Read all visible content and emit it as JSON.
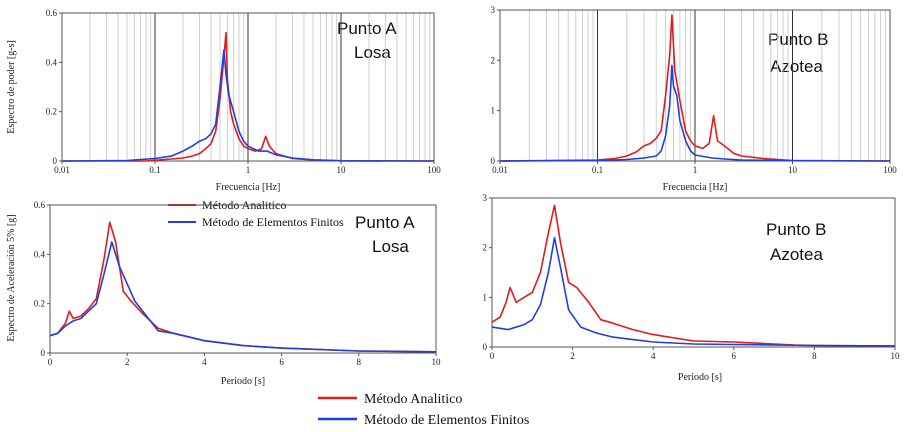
{
  "chart_data": [
    {
      "type": "line",
      "id": "p1",
      "xscale": "log",
      "xlim": [
        0.01,
        100
      ],
      "ylim": [
        0,
        0.6
      ],
      "xticks": [
        "0.01",
        "0.1",
        "1",
        "10",
        "100"
      ],
      "yticks": [
        "0",
        "0.2",
        "0.4",
        "0.6"
      ],
      "xlabel": "Frecuencia  [Hz]",
      "ylabel": "Espectro de poder [g-s]",
      "annotation": [
        "Punto A",
        "Losa"
      ],
      "grid": true,
      "series": [
        {
          "name": "Método Analitico",
          "color": "#e31a1c",
          "points": [
            [
              0.01,
              0
            ],
            [
              0.08,
              0
            ],
            [
              0.1,
              0.003
            ],
            [
              0.15,
              0.008
            ],
            [
              0.2,
              0.012
            ],
            [
              0.25,
              0.02
            ],
            [
              0.3,
              0.03
            ],
            [
              0.35,
              0.05
            ],
            [
              0.4,
              0.07
            ],
            [
              0.45,
              0.12
            ],
            [
              0.5,
              0.25
            ],
            [
              0.55,
              0.42
            ],
            [
              0.58,
              0.52
            ],
            [
              0.6,
              0.33
            ],
            [
              0.65,
              0.2
            ],
            [
              0.7,
              0.15
            ],
            [
              0.8,
              0.09
            ],
            [
              0.9,
              0.06
            ],
            [
              1.0,
              0.05
            ],
            [
              1.2,
              0.04
            ],
            [
              1.4,
              0.05
            ],
            [
              1.55,
              0.1
            ],
            [
              1.7,
              0.06
            ],
            [
              2.0,
              0.03
            ],
            [
              3.0,
              0.01
            ],
            [
              5.0,
              0.004
            ],
            [
              10,
              0.001
            ],
            [
              100,
              0
            ]
          ]
        },
        {
          "name": "Método de Elementos Finitos",
          "color": "#1f3fe0",
          "points": [
            [
              0.01,
              0
            ],
            [
              0.05,
              0.002
            ],
            [
              0.1,
              0.01
            ],
            [
              0.15,
              0.02
            ],
            [
              0.2,
              0.04
            ],
            [
              0.25,
              0.06
            ],
            [
              0.3,
              0.08
            ],
            [
              0.35,
              0.09
            ],
            [
              0.4,
              0.11
            ],
            [
              0.45,
              0.15
            ],
            [
              0.5,
              0.3
            ],
            [
              0.55,
              0.45
            ],
            [
              0.58,
              0.35
            ],
            [
              0.62,
              0.27
            ],
            [
              0.7,
              0.2
            ],
            [
              0.8,
              0.12
            ],
            [
              0.9,
              0.08
            ],
            [
              1.0,
              0.06
            ],
            [
              1.3,
              0.04
            ],
            [
              1.6,
              0.04
            ],
            [
              2.0,
              0.025
            ],
            [
              3.0,
              0.012
            ],
            [
              5.0,
              0.005
            ],
            [
              10,
              0.001
            ],
            [
              100,
              0
            ]
          ]
        }
      ]
    },
    {
      "type": "line",
      "id": "p2",
      "xscale": "log",
      "xlim": [
        0.01,
        100
      ],
      "ylim": [
        0,
        3
      ],
      "xticks": [
        "0.01",
        "0.1",
        "1",
        "10",
        "100"
      ],
      "yticks": [
        "0",
        "1",
        "2",
        "3"
      ],
      "xlabel": "Frecuencia  [Hz]",
      "ylabel": "",
      "annotation": [
        "Punto B",
        "Azotea"
      ],
      "grid": true,
      "series": [
        {
          "name": "Método Analitico",
          "color": "#e31a1c",
          "points": [
            [
              0.01,
              0
            ],
            [
              0.1,
              0.02
            ],
            [
              0.15,
              0.05
            ],
            [
              0.2,
              0.1
            ],
            [
              0.25,
              0.18
            ],
            [
              0.3,
              0.3
            ],
            [
              0.35,
              0.35
            ],
            [
              0.4,
              0.45
            ],
            [
              0.45,
              0.6
            ],
            [
              0.5,
              1.3
            ],
            [
              0.55,
              2.1
            ],
            [
              0.58,
              2.9
            ],
            [
              0.62,
              1.8
            ],
            [
              0.7,
              1.2
            ],
            [
              0.8,
              0.6
            ],
            [
              0.9,
              0.4
            ],
            [
              1.0,
              0.3
            ],
            [
              1.2,
              0.25
            ],
            [
              1.4,
              0.35
            ],
            [
              1.55,
              0.9
            ],
            [
              1.7,
              0.4
            ],
            [
              2.0,
              0.3
            ],
            [
              2.5,
              0.15
            ],
            [
              3.0,
              0.1
            ],
            [
              5.0,
              0.05
            ],
            [
              10,
              0.01
            ],
            [
              100,
              0
            ]
          ]
        },
        {
          "name": "Método de Elementos Finitos",
          "color": "#1f3fe0",
          "points": [
            [
              0.01,
              0
            ],
            [
              0.1,
              0.01
            ],
            [
              0.2,
              0.03
            ],
            [
              0.3,
              0.06
            ],
            [
              0.4,
              0.1
            ],
            [
              0.45,
              0.2
            ],
            [
              0.5,
              0.5
            ],
            [
              0.55,
              1.1
            ],
            [
              0.58,
              1.9
            ],
            [
              0.6,
              1.5
            ],
            [
              0.65,
              1.3
            ],
            [
              0.7,
              0.8
            ],
            [
              0.8,
              0.4
            ],
            [
              0.9,
              0.2
            ],
            [
              1.0,
              0.12
            ],
            [
              1.5,
              0.06
            ],
            [
              2.0,
              0.04
            ],
            [
              3.0,
              0.02
            ],
            [
              10,
              0.005
            ],
            [
              100,
              0
            ]
          ]
        }
      ]
    },
    {
      "type": "line",
      "id": "p3",
      "xscale": "linear",
      "xlim": [
        0,
        10
      ],
      "ylim": [
        0,
        0.6
      ],
      "xticks": [
        "0",
        "2",
        "4",
        "6",
        "8",
        "10"
      ],
      "yticks": [
        "0",
        "0.2",
        "0.4",
        "0.6"
      ],
      "xlabel": "Periodo  [s]",
      "ylabel": "Espectro de Aceleración 5% [g]",
      "annotation": [
        "Punto A",
        "Losa"
      ],
      "grid": false,
      "legend": [
        "Método Analitico",
        "Método de Elementos Finitos"
      ],
      "series": [
        {
          "name": "Método Analitico",
          "color": "#e31a1c",
          "points": [
            [
              0,
              0.07
            ],
            [
              0.2,
              0.08
            ],
            [
              0.4,
              0.12
            ],
            [
              0.5,
              0.17
            ],
            [
              0.6,
              0.14
            ],
            [
              0.8,
              0.15
            ],
            [
              1.0,
              0.18
            ],
            [
              1.2,
              0.22
            ],
            [
              1.4,
              0.38
            ],
            [
              1.55,
              0.53
            ],
            [
              1.7,
              0.45
            ],
            [
              1.9,
              0.25
            ],
            [
              2.1,
              0.21
            ],
            [
              2.4,
              0.16
            ],
            [
              2.8,
              0.1
            ],
            [
              3.2,
              0.08
            ],
            [
              4.0,
              0.05
            ],
            [
              5.0,
              0.03
            ],
            [
              6.0,
              0.02
            ],
            [
              8.0,
              0.008
            ],
            [
              10,
              0.005
            ]
          ]
        },
        {
          "name": "Método de Elementos Finitos",
          "color": "#1f3fe0",
          "points": [
            [
              0,
              0.07
            ],
            [
              0.2,
              0.08
            ],
            [
              0.4,
              0.11
            ],
            [
              0.6,
              0.13
            ],
            [
              0.8,
              0.14
            ],
            [
              1.0,
              0.17
            ],
            [
              1.2,
              0.2
            ],
            [
              1.4,
              0.32
            ],
            [
              1.6,
              0.45
            ],
            [
              1.8,
              0.35
            ],
            [
              2.0,
              0.28
            ],
            [
              2.2,
              0.21
            ],
            [
              2.5,
              0.15
            ],
            [
              2.8,
              0.09
            ],
            [
              3.2,
              0.08
            ],
            [
              4.0,
              0.05
            ],
            [
              5.0,
              0.03
            ],
            [
              6.0,
              0.02
            ],
            [
              8.0,
              0.008
            ],
            [
              10,
              0.005
            ]
          ]
        }
      ]
    },
    {
      "type": "line",
      "id": "p4",
      "xscale": "linear",
      "xlim": [
        0,
        10
      ],
      "ylim": [
        0,
        3
      ],
      "xticks": [
        "0",
        "2",
        "4",
        "6",
        "8",
        "10"
      ],
      "yticks": [
        "0",
        "1",
        "2",
        "3"
      ],
      "xlabel": "Periodo  [s]",
      "ylabel": "",
      "annotation": [
        "Punto B",
        "Azotea"
      ],
      "grid": false,
      "series": [
        {
          "name": "Método Analitico",
          "color": "#e31a1c",
          "points": [
            [
              0,
              0.5
            ],
            [
              0.2,
              0.6
            ],
            [
              0.35,
              0.9
            ],
            [
              0.45,
              1.2
            ],
            [
              0.6,
              0.9
            ],
            [
              0.8,
              1.0
            ],
            [
              1.0,
              1.1
            ],
            [
              1.2,
              1.5
            ],
            [
              1.4,
              2.3
            ],
            [
              1.55,
              2.85
            ],
            [
              1.7,
              2.1
            ],
            [
              1.9,
              1.3
            ],
            [
              2.1,
              1.2
            ],
            [
              2.4,
              0.9
            ],
            [
              2.7,
              0.55
            ],
            [
              3.0,
              0.48
            ],
            [
              3.5,
              0.35
            ],
            [
              4.0,
              0.25
            ],
            [
              5.0,
              0.12
            ],
            [
              6.0,
              0.1
            ],
            [
              7.5,
              0.04
            ],
            [
              8,
              0.03
            ],
            [
              10,
              0.02
            ]
          ]
        },
        {
          "name": "Método de Elementos Finitos",
          "color": "#1f3fe0",
          "points": [
            [
              0,
              0.4
            ],
            [
              0.4,
              0.35
            ],
            [
              0.8,
              0.45
            ],
            [
              1.0,
              0.55
            ],
            [
              1.2,
              0.85
            ],
            [
              1.4,
              1.5
            ],
            [
              1.55,
              2.2
            ],
            [
              1.7,
              1.6
            ],
            [
              1.9,
              0.75
            ],
            [
              2.2,
              0.4
            ],
            [
              2.6,
              0.28
            ],
            [
              3.0,
              0.2
            ],
            [
              4.0,
              0.1
            ],
            [
              5.0,
              0.06
            ],
            [
              6.0,
              0.05
            ],
            [
              7.0,
              0.04
            ],
            [
              8.0,
              0.03
            ],
            [
              10,
              0.02
            ]
          ]
        }
      ]
    }
  ],
  "legend": {
    "items": [
      {
        "label": "Método Analitico",
        "color": "#e31a1c"
      },
      {
        "label": "Método de Elementos Finitos",
        "color": "#1f3fe0"
      }
    ]
  }
}
